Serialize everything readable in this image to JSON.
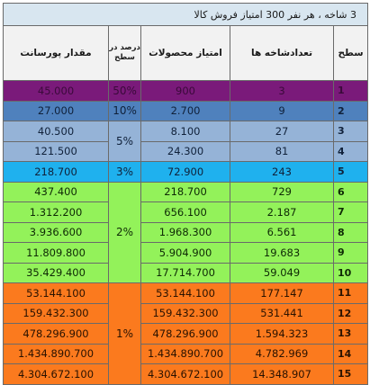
{
  "title": "3 شاخه ، هر نفر 300 امتیاز فروش کالا",
  "headers": {
    "level": "سطح",
    "branches": "تعدادشاخه ها",
    "points": "امتیاز محصولات",
    "percent": "درصد در سطح",
    "commission": "مقدار پورسانت"
  },
  "rows": [
    {
      "level": "1",
      "branches": "3",
      "points": "900",
      "percent": "50%",
      "commission": "45.000"
    },
    {
      "level": "2",
      "branches": "9",
      "points": "2.700",
      "percent": "10%",
      "commission": "27.000"
    },
    {
      "level": "3",
      "branches": "27",
      "points": "8.100",
      "percent": "5%",
      "commission": "40.500"
    },
    {
      "level": "4",
      "branches": "81",
      "points": "24.300",
      "percent": "",
      "commission": "121.500"
    },
    {
      "level": "5",
      "branches": "243",
      "points": "72.900",
      "percent": "3%",
      "commission": "218.700"
    },
    {
      "level": "6",
      "branches": "729",
      "points": "218.700",
      "percent": "2%",
      "commission": "437.400"
    },
    {
      "level": "7",
      "branches": "2.187",
      "points": "656.100",
      "percent": "",
      "commission": "1.312.200"
    },
    {
      "level": "8",
      "branches": "6.561",
      "points": "1.968.300",
      "percent": "",
      "commission": "3.936.600"
    },
    {
      "level": "9",
      "branches": "19.683",
      "points": "5.904.900",
      "percent": "",
      "commission": "11.809.800"
    },
    {
      "level": "10",
      "branches": "59.049",
      "points": "17.714.700",
      "percent": "",
      "commission": "35.429.400"
    },
    {
      "level": "11",
      "branches": "177.147",
      "points": "53.144.100",
      "percent": "1%",
      "commission": "53.144.100"
    },
    {
      "level": "12",
      "branches": "531.441",
      "points": "159.432.300",
      "percent": "",
      "commission": "159.432.300"
    },
    {
      "level": "13",
      "branches": "1.594.323",
      "points": "478.296.900",
      "percent": "",
      "commission": "478.296.900"
    },
    {
      "level": "14",
      "branches": "4.782.969",
      "points": "1.434.890.700",
      "percent": "",
      "commission": "1.434.890.700"
    },
    {
      "level": "15",
      "branches": "14.348.907",
      "points": "4.304.672.100",
      "percent": "",
      "commission": "4.304.672.100"
    }
  ],
  "colors": {
    "purple": "#7a1a7a",
    "blue_dark": "#4f81bd",
    "blue_light": "#95b3d7",
    "cyan": "#1fb1ee",
    "green": "#93f25a",
    "orange": "#fb7a1e"
  }
}
